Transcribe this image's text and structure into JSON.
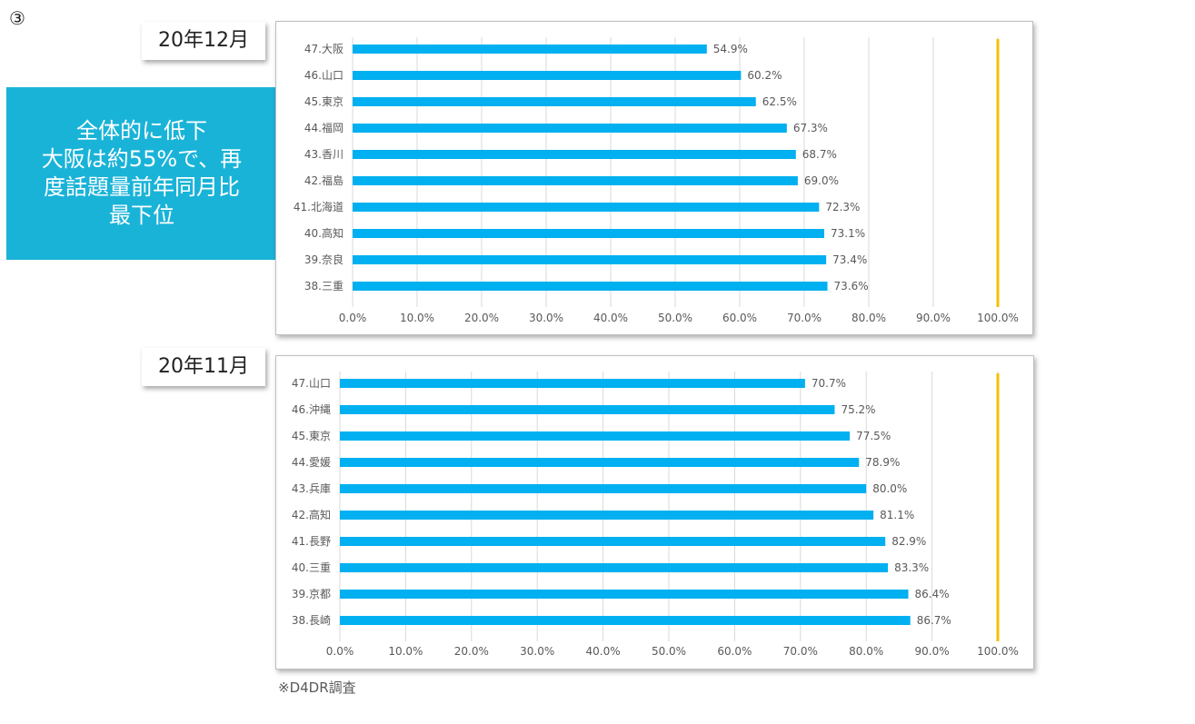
{
  "slide_number": "③",
  "callout": {
    "lines": [
      "全体的に低下",
      "大阪は約55%で、再",
      "度話題量前年同月比",
      "最下位"
    ]
  },
  "source_note": "※D4DR調査",
  "colors": {
    "bar": "#00b0f0",
    "reference_line": "#f5c000",
    "callout_bg": "#1ab3d8"
  },
  "chart_data": [
    {
      "type": "bar",
      "orientation": "horizontal",
      "title": "20年12月",
      "categories": [
        "47.大阪",
        "46.山口",
        "45.東京",
        "44.福岡",
        "43.香川",
        "42.福島",
        "41.北海道",
        "40.高知",
        "39.奈良",
        "38.三重"
      ],
      "values": [
        54.9,
        60.2,
        62.5,
        67.3,
        68.7,
        69.0,
        72.3,
        73.1,
        73.4,
        73.6
      ],
      "value_labels": [
        "54.9%",
        "60.2%",
        "62.5%",
        "67.3%",
        "68.7%",
        "69.0%",
        "72.3%",
        "73.1%",
        "73.4%",
        "73.6%"
      ],
      "xlim": [
        0,
        100
      ],
      "x_ticks": [
        "0.0%",
        "10.0%",
        "20.0%",
        "30.0%",
        "40.0%",
        "50.0%",
        "60.0%",
        "70.0%",
        "80.0%",
        "90.0%",
        "100.0%"
      ],
      "reference_line": 100,
      "grid": true
    },
    {
      "type": "bar",
      "orientation": "horizontal",
      "title": "20年11月",
      "categories": [
        "47.山口",
        "46.沖縄",
        "45.東京",
        "44.愛媛",
        "43.兵庫",
        "42.高知",
        "41.長野",
        "40.三重",
        "39.京都",
        "38.長崎"
      ],
      "values": [
        70.7,
        75.2,
        77.5,
        78.9,
        80.0,
        81.1,
        82.9,
        83.3,
        86.4,
        86.7
      ],
      "value_labels": [
        "70.7%",
        "75.2%",
        "77.5%",
        "78.9%",
        "80.0%",
        "81.1%",
        "82.9%",
        "83.3%",
        "86.4%",
        "86.7%"
      ],
      "xlim": [
        0,
        100
      ],
      "x_ticks": [
        "0.0%",
        "10.0%",
        "20.0%",
        "30.0%",
        "40.0%",
        "50.0%",
        "60.0%",
        "70.0%",
        "80.0%",
        "90.0%",
        "100.0%"
      ],
      "reference_line": 100,
      "grid": true
    }
  ]
}
